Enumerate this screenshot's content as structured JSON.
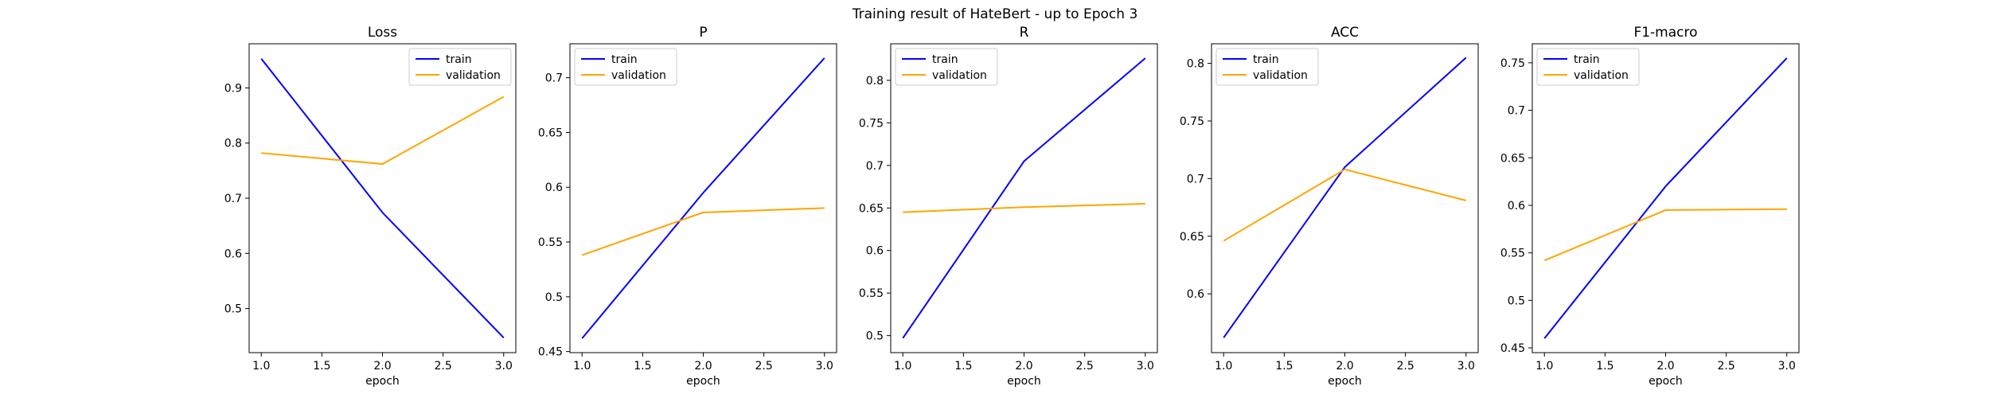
{
  "figure": {
    "title": "Training result of HateBert - up to Epoch 3"
  },
  "chart_data": [
    {
      "type": "line",
      "title": "Loss",
      "xlabel": "epoch",
      "ylabel": "",
      "x": [
        1,
        2,
        3
      ],
      "xlim": [
        0.9,
        3.1
      ],
      "ylim": [
        0.42,
        0.98
      ],
      "xticks": [
        1.0,
        1.5,
        2.0,
        2.5,
        3.0
      ],
      "yticks": [
        0.5,
        0.6,
        0.7,
        0.8,
        0.9
      ],
      "legend_position": "upper right",
      "series": [
        {
          "name": "train",
          "color": "#0000ff",
          "values": [
            0.953,
            0.674,
            0.447
          ]
        },
        {
          "name": "validation",
          "color": "#ffa500",
          "values": [
            0.782,
            0.762,
            0.884
          ]
        }
      ]
    },
    {
      "type": "line",
      "title": "P",
      "xlabel": "epoch",
      "ylabel": "",
      "x": [
        1,
        2,
        3
      ],
      "xlim": [
        0.9,
        3.1
      ],
      "ylim": [
        0.449,
        0.731
      ],
      "xticks": [
        1.0,
        1.5,
        2.0,
        2.5,
        3.0
      ],
      "yticks": [
        0.45,
        0.5,
        0.55,
        0.6,
        0.65,
        0.7
      ],
      "legend_position": "upper left",
      "series": [
        {
          "name": "train",
          "color": "#0000ff",
          "values": [
            0.462,
            0.595,
            0.718
          ]
        },
        {
          "name": "validation",
          "color": "#ffa500",
          "values": [
            0.538,
            0.577,
            0.581
          ]
        }
      ]
    },
    {
      "type": "line",
      "title": "R",
      "xlabel": "epoch",
      "ylabel": "",
      "x": [
        1,
        2,
        3
      ],
      "xlim": [
        0.9,
        3.1
      ],
      "ylim": [
        0.48,
        0.843
      ],
      "xticks": [
        1.0,
        1.5,
        2.0,
        2.5,
        3.0
      ],
      "yticks": [
        0.5,
        0.55,
        0.6,
        0.65,
        0.7,
        0.75,
        0.8
      ],
      "legend_position": "upper left",
      "series": [
        {
          "name": "train",
          "color": "#0000ff",
          "values": [
            0.497,
            0.705,
            0.826
          ]
        },
        {
          "name": "validation",
          "color": "#ffa500",
          "values": [
            0.645,
            0.651,
            0.655
          ]
        }
      ]
    },
    {
      "type": "line",
      "title": "ACC",
      "xlabel": "epoch",
      "ylabel": "",
      "x": [
        1,
        2,
        3
      ],
      "xlim": [
        0.9,
        3.1
      ],
      "ylim": [
        0.549,
        0.817
      ],
      "xticks": [
        1.0,
        1.5,
        2.0,
        2.5,
        3.0
      ],
      "yticks": [
        0.6,
        0.65,
        0.7,
        0.75,
        0.8
      ],
      "legend_position": "upper left",
      "series": [
        {
          "name": "train",
          "color": "#0000ff",
          "values": [
            0.562,
            0.71,
            0.805
          ]
        },
        {
          "name": "validation",
          "color": "#ffa500",
          "values": [
            0.646,
            0.708,
            0.681
          ]
        }
      ]
    },
    {
      "type": "line",
      "title": "F1-macro",
      "xlabel": "epoch",
      "ylabel": "",
      "x": [
        1,
        2,
        3
      ],
      "xlim": [
        0.9,
        3.1
      ],
      "ylim": [
        0.445,
        0.77
      ],
      "xticks": [
        1.0,
        1.5,
        2.0,
        2.5,
        3.0
      ],
      "yticks": [
        0.45,
        0.5,
        0.55,
        0.6,
        0.65,
        0.7,
        0.75
      ],
      "legend_position": "upper left",
      "series": [
        {
          "name": "train",
          "color": "#0000ff",
          "values": [
            0.46,
            0.62,
            0.755
          ]
        },
        {
          "name": "validation",
          "color": "#ffa500",
          "values": [
            0.542,
            0.595,
            0.596
          ]
        }
      ]
    }
  ]
}
